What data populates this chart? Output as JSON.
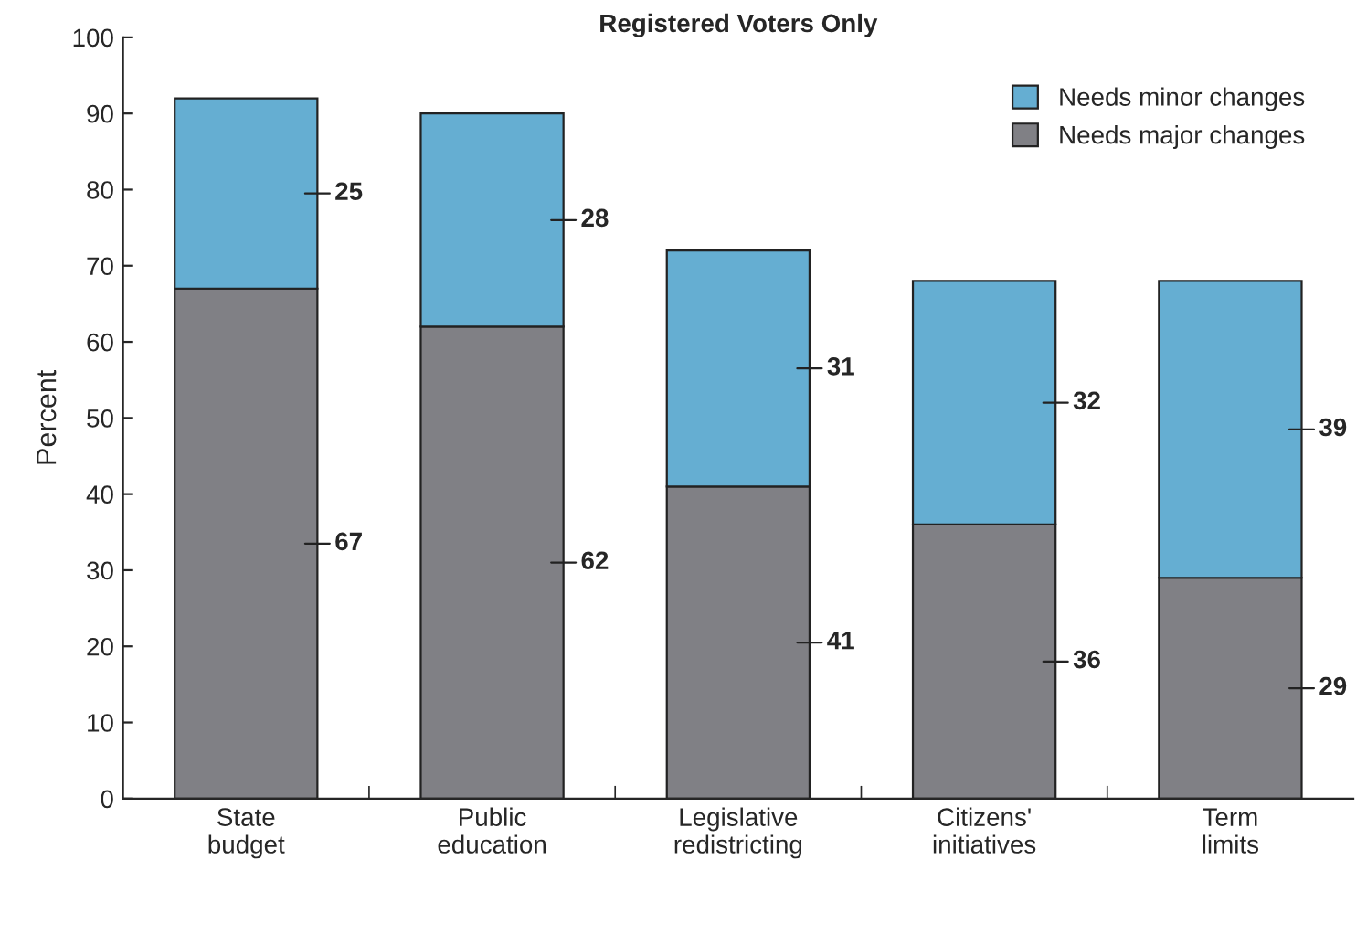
{
  "chart_data": {
    "type": "bar",
    "title": "Registered Voters Only",
    "ylabel": "Percent",
    "categories": [
      "State\nbudget",
      "Public\neducation",
      "Legislative\nredistricting",
      "Citizens'\ninitiatives",
      "Term\nlimits"
    ],
    "series": [
      {
        "name": "Needs major changes",
        "color": "#808085",
        "values": [
          67,
          62,
          41,
          36,
          29
        ]
      },
      {
        "name": "Needs minor changes",
        "color": "#65aed2",
        "values": [
          25,
          28,
          31,
          32,
          39
        ]
      }
    ],
    "stacked": true,
    "data_labels": true,
    "ylim": [
      0,
      100
    ],
    "yticks": [
      0,
      10,
      20,
      30,
      40,
      50,
      60,
      70,
      80,
      90,
      100
    ],
    "grid": false,
    "legend": "top right"
  }
}
